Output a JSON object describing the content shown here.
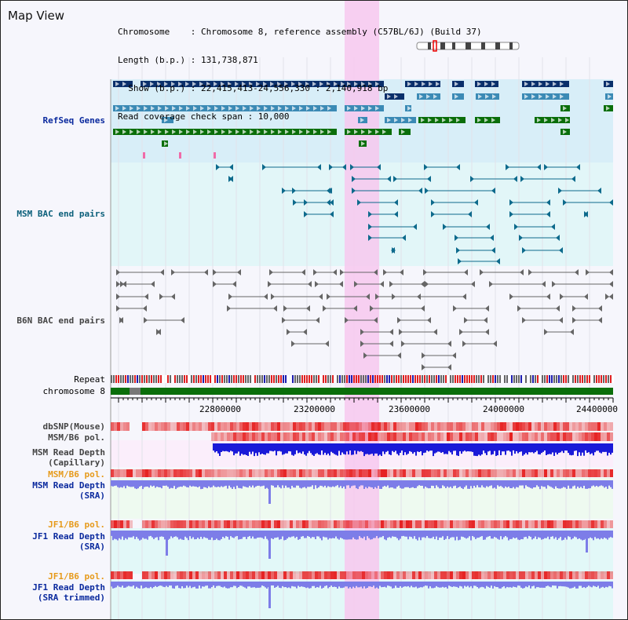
{
  "title": "Map View",
  "info": {
    "line1": "Chromosome    : Chromosome 8, reference assembly (C57BL/6J) (Build 37)",
    "line2": "Length (b.p.) : 131,738,871",
    "line3": "  Show (b.p.) : 22,415,413-24,556,330 : 2,140,918 bp",
    "line4": "Read coverage check span : 10,000"
  },
  "tracks": {
    "refseq": "RefSeq Genes",
    "msm_bac": "MSM BAC end pairs",
    "b6n_bac": "B6N BAC end pairs",
    "repeat": "Repeat",
    "chromosome": "chromosome 8",
    "dbsnp": "dbSNP(Mouse)",
    "msm_b6_pol_1": "MSM/B6 pol.",
    "msm_depth_cap": "MSM Read Depth\n(Capillary)",
    "msm_b6_pol_2": "MSM/B6 pol.",
    "msm_depth_sra": "MSM Read Depth\n(SRA)",
    "jf1_b6_pol_1": "JF1/B6 pol.",
    "jf1_depth_sra": "JF1 Read Depth\n(SRA)",
    "jf1_b6_pol_2": "JF1/B6 pol.",
    "jf1_depth_trim": "JF1 Read Depth\n(SRA trimmed)"
  },
  "axis": {
    "ticks": [
      "22800000",
      "23200000",
      "23600000",
      "24000000",
      "24400000"
    ]
  },
  "colors": {
    "highlight": "#f7c8ef",
    "refseq_bg": "#d8eef8",
    "gene_dark": "#0a2f6b",
    "gene_mid": "#3b8ab5",
    "gene_green": "#0a6e0a",
    "chromosome": "#0a6e0a",
    "bac_msm": "#0d6a8c",
    "bac_b6n": "#666666",
    "depth_blue": "#1a1ad8",
    "depth_light": "#7d7de8",
    "pol_red": "#e62020"
  }
}
